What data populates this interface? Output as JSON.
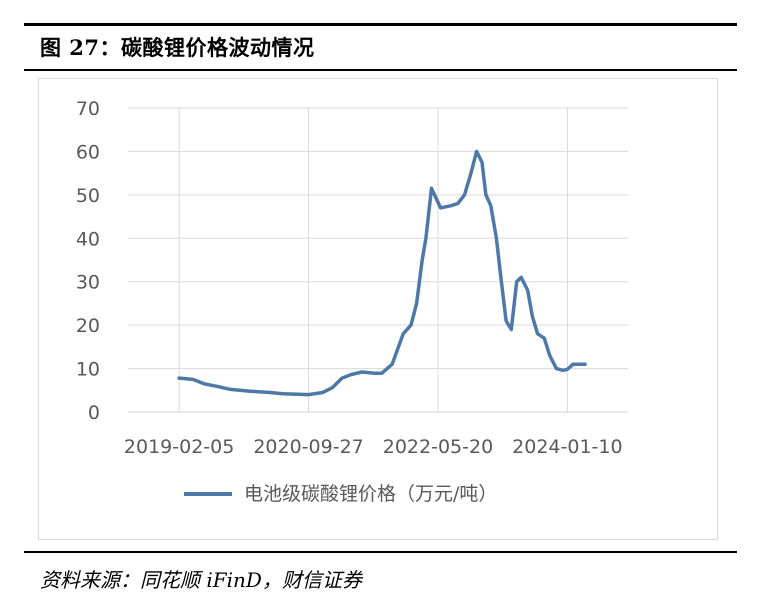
{
  "figure": {
    "title": "图 27：碳酸锂价格波动情况",
    "source": "资料来源：同花顺 iFinD，财信证券"
  },
  "colors": {
    "series": "#4e79a7",
    "grid": "#d9d9d9",
    "axis_text": "#595959"
  },
  "chart_data": {
    "type": "line",
    "title": "",
    "xlabel": "",
    "ylabel": "",
    "ylim": [
      0,
      70
    ],
    "yticks": [
      0,
      10,
      20,
      30,
      40,
      50,
      60,
      70
    ],
    "xlim": [
      "2018-06-13",
      "2024-10-17"
    ],
    "xticks": [
      "2019-02-05",
      "2020-09-27",
      "2022-05-20",
      "2024-01-10"
    ],
    "grid": true,
    "legend": "bottom",
    "series": [
      {
        "name": "电池级碳酸锂价格（万元/吨）",
        "x": [
          "2019-02-05",
          "2019-04-10",
          "2019-06-01",
          "2019-08-10",
          "2019-10-01",
          "2020-01-01",
          "2020-04-01",
          "2020-06-01",
          "2020-09-27",
          "2020-12-01",
          "2021-01-15",
          "2021-03-01",
          "2021-04-10",
          "2021-06-01",
          "2021-08-01",
          "2021-09-01",
          "2021-10-20",
          "2021-12-10",
          "2022-01-15",
          "2022-02-10",
          "2022-03-08",
          "2022-03-25",
          "2022-04-20",
          "2022-06-01",
          "2022-07-20",
          "2022-08-20",
          "2022-09-20",
          "2022-10-20",
          "2022-11-15",
          "2022-12-10",
          "2022-12-28",
          "2023-01-20",
          "2023-02-15",
          "2023-03-10",
          "2023-04-01",
          "2023-04-25",
          "2023-05-20",
          "2023-06-10",
          "2023-07-10",
          "2023-08-01",
          "2023-08-25",
          "2023-09-25",
          "2023-10-20",
          "2023-11-20",
          "2023-12-20",
          "2024-01-10",
          "2024-02-05",
          "2024-03-01",
          "2024-04-01"
        ],
        "values": [
          7.8,
          7.5,
          6.5,
          5.8,
          5.2,
          4.8,
          4.5,
          4.2,
          4.0,
          4.5,
          5.6,
          7.8,
          8.6,
          9.2,
          8.9,
          8.9,
          11.0,
          18.0,
          20.0,
          25.0,
          35.0,
          40.0,
          51.5,
          47.0,
          47.5,
          48.0,
          50.0,
          55.0,
          60.0,
          57.5,
          50.0,
          47.5,
          40.0,
          30.0,
          21.0,
          19.0,
          30.0,
          31.0,
          28.0,
          22.0,
          18.0,
          17.0,
          13.0,
          10.0,
          9.6,
          9.8,
          11.0,
          11.0,
          11.0
        ]
      }
    ]
  }
}
